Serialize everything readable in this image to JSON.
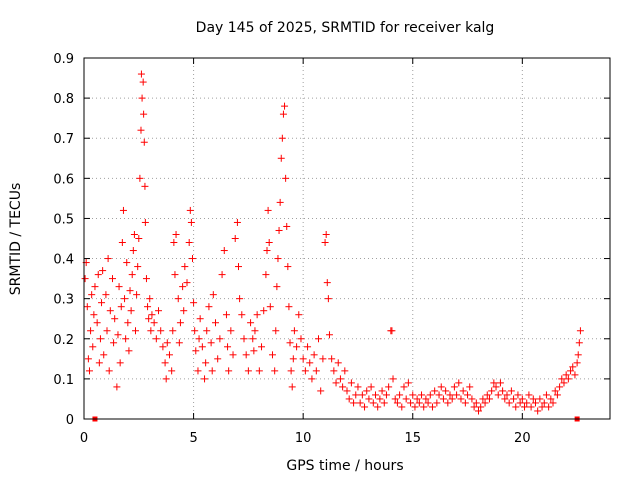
{
  "chart_data": {
    "type": "scatter",
    "title": "Day 145 of 2025, SRMTID for receiver kalg",
    "xlabel": "GPS time / hours",
    "ylabel": "SRMTID / TECUs",
    "xlim": [
      0,
      24
    ],
    "ylim": [
      0,
      0.9
    ],
    "xticks": [
      0,
      5,
      10,
      15,
      20
    ],
    "xtick_labels": [
      "0",
      "5",
      "10",
      "15",
      "20"
    ],
    "yticks": [
      0,
      0.1,
      0.2,
      0.3,
      0.4,
      0.5,
      0.6,
      0.7,
      0.8,
      0.9
    ],
    "ytick_labels": [
      "0",
      "0.1",
      "0.2",
      "0.3",
      "0.4",
      "0.5",
      "0.6",
      "0.7",
      "0.8",
      "0.9"
    ],
    "grid": true,
    "marker": "plus",
    "color": "#ff0000",
    "series": [
      {
        "name": "SRMTID",
        "points": [
          [
            0.05,
            0.35
          ],
          [
            0.1,
            0.39
          ],
          [
            0.15,
            0.28
          ],
          [
            0.2,
            0.15
          ],
          [
            0.25,
            0.12
          ],
          [
            0.3,
            0.22
          ],
          [
            0.35,
            0.31
          ],
          [
            0.4,
            0.18
          ],
          [
            0.45,
            0.26
          ],
          [
            0.5,
            0.33
          ],
          [
            0.6,
            0.24
          ],
          [
            0.65,
            0.36
          ],
          [
            0.7,
            0.14
          ],
          [
            0.75,
            0.2
          ],
          [
            0.8,
            0.29
          ],
          [
            0.85,
            0.37
          ],
          [
            0.9,
            0.16
          ],
          [
            1.0,
            0.31
          ],
          [
            1.05,
            0.22
          ],
          [
            1.1,
            0.4
          ],
          [
            1.15,
            0.12
          ],
          [
            1.2,
            0.27
          ],
          [
            1.3,
            0.35
          ],
          [
            1.35,
            0.19
          ],
          [
            1.4,
            0.25
          ],
          [
            1.5,
            0.08
          ],
          [
            1.55,
            0.21
          ],
          [
            1.6,
            0.33
          ],
          [
            1.65,
            0.14
          ],
          [
            1.7,
            0.28
          ],
          [
            1.75,
            0.44
          ],
          [
            1.8,
            0.52
          ],
          [
            1.85,
            0.3
          ],
          [
            1.9,
            0.2
          ],
          [
            1.95,
            0.39
          ],
          [
            2.0,
            0.24
          ],
          [
            2.05,
            0.17
          ],
          [
            2.1,
            0.32
          ],
          [
            2.15,
            0.27
          ],
          [
            2.2,
            0.36
          ],
          [
            2.25,
            0.42
          ],
          [
            2.3,
            0.46
          ],
          [
            2.35,
            0.22
          ],
          [
            2.4,
            0.31
          ],
          [
            2.45,
            0.38
          ],
          [
            2.5,
            0.45
          ],
          [
            2.55,
            0.6
          ],
          [
            2.6,
            0.72
          ],
          [
            2.62,
            0.86
          ],
          [
            2.65,
            0.8
          ],
          [
            2.7,
            0.84
          ],
          [
            2.72,
            0.76
          ],
          [
            2.75,
            0.69
          ],
          [
            2.78,
            0.58
          ],
          [
            2.8,
            0.49
          ],
          [
            2.85,
            0.35
          ],
          [
            2.9,
            0.28
          ],
          [
            2.95,
            0.25
          ],
          [
            3.0,
            0.3
          ],
          [
            3.05,
            0.22
          ],
          [
            3.1,
            0.26
          ],
          [
            3.2,
            0.24
          ],
          [
            3.3,
            0.2
          ],
          [
            3.4,
            0.27
          ],
          [
            3.5,
            0.22
          ],
          [
            3.6,
            0.18
          ],
          [
            3.7,
            0.14
          ],
          [
            3.75,
            0.1
          ],
          [
            3.8,
            0.19
          ],
          [
            3.9,
            0.16
          ],
          [
            4.0,
            0.12
          ],
          [
            4.05,
            0.22
          ],
          [
            4.1,
            0.44
          ],
          [
            4.15,
            0.36
          ],
          [
            4.2,
            0.46
          ],
          [
            4.3,
            0.3
          ],
          [
            4.35,
            0.19
          ],
          [
            4.4,
            0.24
          ],
          [
            4.5,
            0.33
          ],
          [
            4.55,
            0.27
          ],
          [
            4.6,
            0.38
          ],
          [
            4.7,
            0.34
          ],
          [
            4.8,
            0.44
          ],
          [
            4.85,
            0.52
          ],
          [
            4.9,
            0.49
          ],
          [
            4.95,
            0.4
          ],
          [
            5.0,
            0.29
          ],
          [
            5.05,
            0.22
          ],
          [
            5.1,
            0.17
          ],
          [
            5.2,
            0.12
          ],
          [
            5.25,
            0.2
          ],
          [
            5.3,
            0.25
          ],
          [
            5.4,
            0.18
          ],
          [
            5.5,
            0.1
          ],
          [
            5.55,
            0.14
          ],
          [
            5.6,
            0.22
          ],
          [
            5.7,
            0.28
          ],
          [
            5.8,
            0.19
          ],
          [
            5.85,
            0.12
          ],
          [
            5.9,
            0.31
          ],
          [
            6.0,
            0.24
          ],
          [
            6.1,
            0.15
          ],
          [
            6.2,
            0.2
          ],
          [
            6.3,
            0.36
          ],
          [
            6.4,
            0.42
          ],
          [
            6.5,
            0.26
          ],
          [
            6.55,
            0.18
          ],
          [
            6.6,
            0.12
          ],
          [
            6.7,
            0.22
          ],
          [
            6.8,
            0.16
          ],
          [
            6.9,
            0.45
          ],
          [
            7.0,
            0.49
          ],
          [
            7.05,
            0.38
          ],
          [
            7.1,
            0.3
          ],
          [
            7.2,
            0.26
          ],
          [
            7.3,
            0.2
          ],
          [
            7.4,
            0.16
          ],
          [
            7.5,
            0.12
          ],
          [
            7.6,
            0.24
          ],
          [
            7.7,
            0.2
          ],
          [
            7.75,
            0.17
          ],
          [
            7.8,
            0.22
          ],
          [
            7.9,
            0.26
          ],
          [
            8.0,
            0.12
          ],
          [
            8.1,
            0.18
          ],
          [
            8.2,
            0.27
          ],
          [
            8.3,
            0.36
          ],
          [
            8.35,
            0.42
          ],
          [
            8.4,
            0.52
          ],
          [
            8.45,
            0.44
          ],
          [
            8.5,
            0.28
          ],
          [
            8.6,
            0.16
          ],
          [
            8.7,
            0.12
          ],
          [
            8.75,
            0.22
          ],
          [
            8.8,
            0.33
          ],
          [
            8.85,
            0.4
          ],
          [
            8.9,
            0.47
          ],
          [
            8.95,
            0.54
          ],
          [
            9.0,
            0.65
          ],
          [
            9.05,
            0.7
          ],
          [
            9.1,
            0.76
          ],
          [
            9.15,
            0.78
          ],
          [
            9.2,
            0.6
          ],
          [
            9.25,
            0.48
          ],
          [
            9.3,
            0.38
          ],
          [
            9.35,
            0.28
          ],
          [
            9.4,
            0.19
          ],
          [
            9.45,
            0.12
          ],
          [
            9.5,
            0.08
          ],
          [
            9.55,
            0.15
          ],
          [
            9.6,
            0.22
          ],
          [
            9.7,
            0.18
          ],
          [
            9.8,
            0.26
          ],
          [
            9.9,
            0.2
          ],
          [
            10.0,
            0.15
          ],
          [
            10.1,
            0.12
          ],
          [
            10.2,
            0.18
          ],
          [
            10.3,
            0.14
          ],
          [
            10.4,
            0.1
          ],
          [
            10.5,
            0.16
          ],
          [
            10.6,
            0.12
          ],
          [
            10.7,
            0.2
          ],
          [
            10.8,
            0.07
          ],
          [
            10.9,
            0.15
          ],
          [
            11.0,
            0.44
          ],
          [
            11.05,
            0.46
          ],
          [
            11.1,
            0.34
          ],
          [
            11.15,
            0.3
          ],
          [
            11.2,
            0.21
          ],
          [
            11.3,
            0.15
          ],
          [
            11.4,
            0.12
          ],
          [
            11.5,
            0.09
          ],
          [
            11.6,
            0.14
          ],
          [
            11.7,
            0.1
          ],
          [
            11.8,
            0.08
          ],
          [
            11.9,
            0.12
          ],
          [
            12.0,
            0.07
          ],
          [
            12.1,
            0.05
          ],
          [
            12.2,
            0.09
          ],
          [
            12.3,
            0.04
          ],
          [
            12.4,
            0.06
          ],
          [
            12.5,
            0.08
          ],
          [
            12.6,
            0.04
          ],
          [
            12.7,
            0.06
          ],
          [
            12.8,
            0.03
          ],
          [
            12.9,
            0.07
          ],
          [
            13.0,
            0.05
          ],
          [
            13.1,
            0.08
          ],
          [
            13.2,
            0.04
          ],
          [
            13.3,
            0.06
          ],
          [
            13.4,
            0.03
          ],
          [
            13.5,
            0.05
          ],
          [
            13.6,
            0.07
          ],
          [
            13.7,
            0.04
          ],
          [
            13.8,
            0.06
          ],
          [
            13.9,
            0.08
          ],
          [
            14.0,
            0.22
          ],
          [
            14.05,
            0.22
          ],
          [
            14.1,
            0.1
          ],
          [
            14.2,
            0.05
          ],
          [
            14.3,
            0.04
          ],
          [
            14.4,
            0.06
          ],
          [
            14.5,
            0.03
          ],
          [
            14.6,
            0.08
          ],
          [
            14.7,
            0.05
          ],
          [
            14.8,
            0.09
          ],
          [
            14.9,
            0.04
          ],
          [
            15.0,
            0.06
          ],
          [
            15.1,
            0.03
          ],
          [
            15.2,
            0.05
          ],
          [
            15.3,
            0.04
          ],
          [
            15.4,
            0.06
          ],
          [
            15.5,
            0.03
          ],
          [
            15.6,
            0.05
          ],
          [
            15.7,
            0.04
          ],
          [
            15.8,
            0.06
          ],
          [
            15.9,
            0.03
          ],
          [
            16.0,
            0.07
          ],
          [
            16.1,
            0.04
          ],
          [
            16.2,
            0.06
          ],
          [
            16.3,
            0.08
          ],
          [
            16.4,
            0.05
          ],
          [
            16.5,
            0.07
          ],
          [
            16.6,
            0.04
          ],
          [
            16.7,
            0.06
          ],
          [
            16.8,
            0.05
          ],
          [
            16.9,
            0.08
          ],
          [
            17.0,
            0.06
          ],
          [
            17.1,
            0.09
          ],
          [
            17.2,
            0.05
          ],
          [
            17.3,
            0.07
          ],
          [
            17.4,
            0.04
          ],
          [
            17.5,
            0.06
          ],
          [
            17.6,
            0.08
          ],
          [
            17.7,
            0.05
          ],
          [
            17.8,
            0.03
          ],
          [
            17.9,
            0.04
          ],
          [
            18.0,
            0.02
          ],
          [
            18.1,
            0.03
          ],
          [
            18.2,
            0.05
          ],
          [
            18.3,
            0.04
          ],
          [
            18.4,
            0.06
          ],
          [
            18.5,
            0.05
          ],
          [
            18.6,
            0.07
          ],
          [
            18.7,
            0.09
          ],
          [
            18.8,
            0.08
          ],
          [
            18.9,
            0.06
          ],
          [
            19.0,
            0.09
          ],
          [
            19.1,
            0.07
          ],
          [
            19.2,
            0.05
          ],
          [
            19.3,
            0.06
          ],
          [
            19.4,
            0.04
          ],
          [
            19.5,
            0.07
          ],
          [
            19.6,
            0.05
          ],
          [
            19.7,
            0.03
          ],
          [
            19.8,
            0.06
          ],
          [
            19.9,
            0.04
          ],
          [
            20.0,
            0.05
          ],
          [
            20.1,
            0.03
          ],
          [
            20.2,
            0.04
          ],
          [
            20.3,
            0.06
          ],
          [
            20.4,
            0.03
          ],
          [
            20.5,
            0.05
          ],
          [
            20.6,
            0.04
          ],
          [
            20.7,
            0.02
          ],
          [
            20.8,
            0.05
          ],
          [
            20.9,
            0.03
          ],
          [
            21.0,
            0.04
          ],
          [
            21.1,
            0.06
          ],
          [
            21.2,
            0.03
          ],
          [
            21.3,
            0.05
          ],
          [
            21.4,
            0.04
          ],
          [
            21.5,
            0.07
          ],
          [
            21.6,
            0.06
          ],
          [
            21.7,
            0.08
          ],
          [
            21.8,
            0.1
          ],
          [
            21.9,
            0.09
          ],
          [
            22.0,
            0.11
          ],
          [
            22.1,
            0.1
          ],
          [
            22.2,
            0.12
          ],
          [
            22.3,
            0.13
          ],
          [
            22.4,
            0.11
          ],
          [
            22.5,
            0.14
          ],
          [
            22.55,
            0.16
          ],
          [
            22.6,
            0.19
          ],
          [
            22.65,
            0.22
          ]
        ]
      }
    ],
    "data_gaps": [
      0.5,
      22.5
    ]
  }
}
